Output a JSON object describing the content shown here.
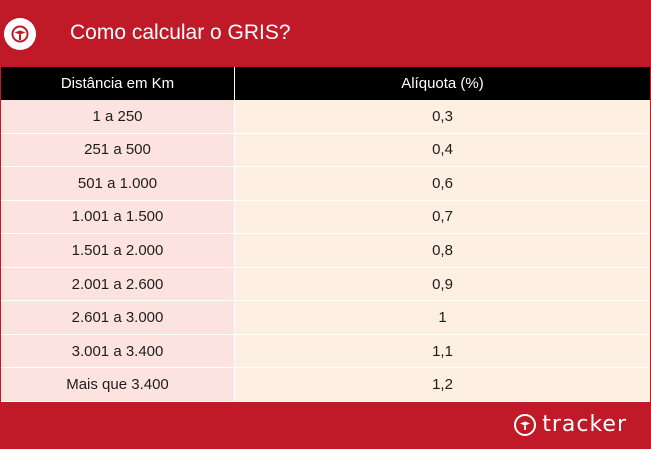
{
  "header": {
    "title": "Como calcular o GRIS?",
    "logo_icon": "tracker-emblem-icon"
  },
  "table": {
    "columns": [
      "Distância em Km",
      "Alíquota (%)"
    ],
    "rows": [
      [
        "1 a 250",
        "0,3"
      ],
      [
        "251 a 500",
        "0,4"
      ],
      [
        "501 a 1.000",
        "0,6"
      ],
      [
        "1.001 a 1.500",
        "0,7"
      ],
      [
        "1.501 a 2.000",
        "0,8"
      ],
      [
        "2.001 a 2.600",
        "0,9"
      ],
      [
        "2.601 a 3.000",
        "1"
      ],
      [
        "3.001 a 3.400",
        "1,1"
      ],
      [
        "Mais que 3.400",
        "1,2"
      ]
    ]
  },
  "footer": {
    "brand": "tracker"
  },
  "colors": {
    "brand_red": "#c01927",
    "header_row": "#000000",
    "col1_bg": "#fde3df",
    "col2_bg": "#fdefe1"
  }
}
